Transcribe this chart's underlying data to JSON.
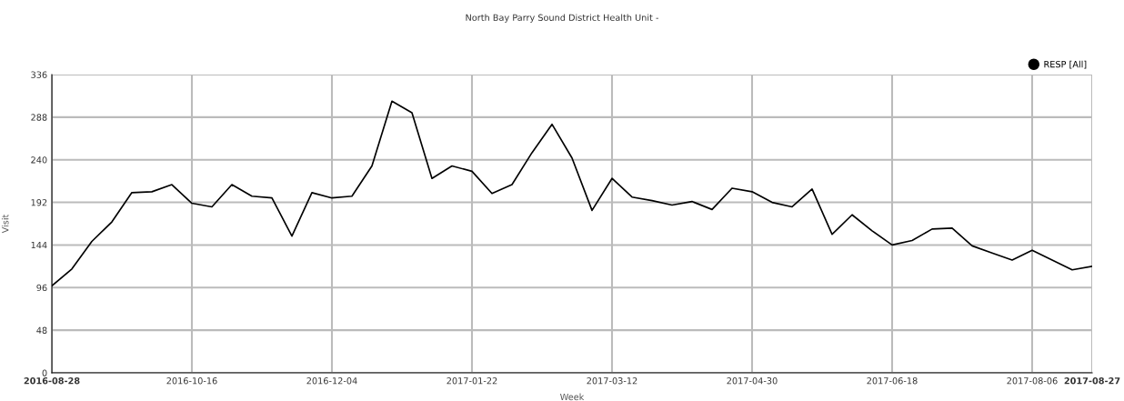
{
  "chart_data": {
    "type": "line",
    "title": "North Bay Parry Sound District Health Unit -",
    "xlabel": "Week",
    "ylabel": "Visit",
    "x": [
      "2016-08-28",
      "2016-09-04",
      "2016-09-11",
      "2016-09-18",
      "2016-09-25",
      "2016-10-02",
      "2016-10-09",
      "2016-10-16",
      "2016-10-23",
      "2016-10-30",
      "2016-11-06",
      "2016-11-13",
      "2016-11-20",
      "2016-11-27",
      "2016-12-04",
      "2016-12-11",
      "2016-12-18",
      "2016-12-25",
      "2017-01-01",
      "2017-01-08",
      "2017-01-15",
      "2017-01-22",
      "2017-01-29",
      "2017-02-05",
      "2017-02-12",
      "2017-02-19",
      "2017-02-26",
      "2017-03-05",
      "2017-03-12",
      "2017-03-19",
      "2017-03-26",
      "2017-04-02",
      "2017-04-09",
      "2017-04-16",
      "2017-04-23",
      "2017-04-30",
      "2017-05-07",
      "2017-05-14",
      "2017-05-21",
      "2017-05-28",
      "2017-06-04",
      "2017-06-11",
      "2017-06-18",
      "2017-06-25",
      "2017-07-02",
      "2017-07-09",
      "2017-07-16",
      "2017-07-23",
      "2017-07-30",
      "2017-08-06",
      "2017-08-13",
      "2017-08-20",
      "2017-08-27"
    ],
    "series": [
      {
        "name": "RESP [All]",
        "color": "#000000",
        "values": [
          98,
          117,
          148,
          170,
          203,
          204,
          212,
          191,
          187,
          212,
          199,
          197,
          154,
          203,
          197,
          199,
          233,
          306,
          293,
          219,
          233,
          227,
          202,
          212,
          248,
          280,
          242,
          183,
          219,
          198,
          194,
          189,
          193,
          184,
          208,
          204,
          192,
          187,
          207,
          156,
          178,
          160,
          144,
          149,
          162,
          163,
          143,
          135,
          127,
          138,
          127,
          116,
          120
        ]
      }
    ],
    "xlim": [
      "2016-08-28",
      "2017-08-27"
    ],
    "xticks": [
      "2016-08-28",
      "2016-10-16",
      "2016-12-04",
      "2017-01-22",
      "2017-03-12",
      "2017-04-30",
      "2017-06-18",
      "2017-08-06",
      "2017-08-27"
    ],
    "ylim": [
      0,
      336
    ],
    "yticks": [
      0,
      48,
      96,
      144,
      192,
      240,
      288,
      336
    ],
    "grid": true,
    "legend": "top right",
    "marker": "none",
    "line_style": "solid"
  }
}
